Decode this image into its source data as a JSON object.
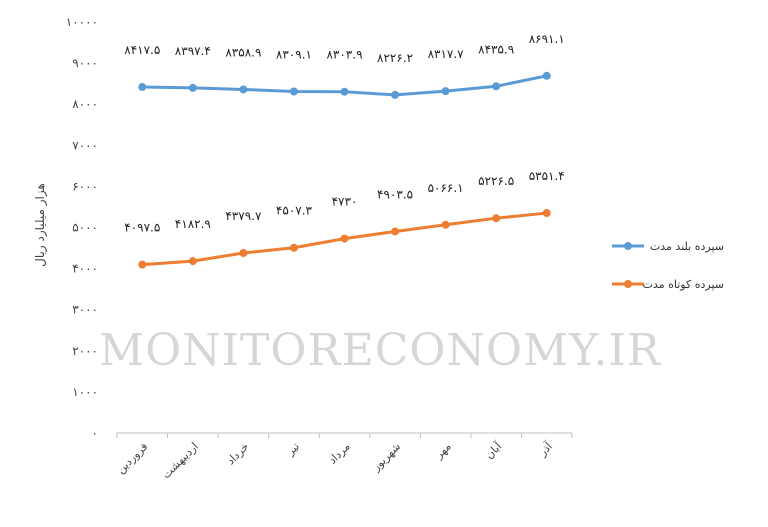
{
  "chart_data": {
    "type": "line",
    "categories": [
      "فروردین",
      "اردیبهشت",
      "خرداد",
      "تیر",
      "مرداد",
      "شهریور",
      "مهر",
      "آبان",
      "آذر"
    ],
    "ylabel": "هزار میلیارد ریال",
    "ylim": [
      0,
      10000
    ],
    "yticks": [
      "۰",
      "۱۰۰۰",
      "۲۰۰۰",
      "۳۰۰۰",
      "۴۰۰۰",
      "۵۰۰۰",
      "۶۰۰۰",
      "۷۰۰۰",
      "۸۰۰۰",
      "۹۰۰۰",
      "۱۰۰۰۰"
    ],
    "ytick_values": [
      0,
      1000,
      2000,
      3000,
      4000,
      5000,
      6000,
      7000,
      8000,
      9000,
      10000
    ],
    "grid": false,
    "legend_position": "right",
    "series": [
      {
        "name": "سپرده بلند مدت",
        "color": "#5b9bd5",
        "values": [
          8417.5,
          8397.4,
          8358.9,
          8309.1,
          8303.9,
          8226.2,
          8317.7,
          8435.9,
          8691.1
        ],
        "labels": [
          "۸۴۱۷.۵",
          "۸۳۹۷.۴",
          "۸۳۵۸.۹",
          "۸۳۰۹.۱",
          "۸۳۰۳.۹",
          "۸۲۲۶.۲",
          "۸۳۱۷.۷",
          "۸۴۳۵.۹",
          "۸۶۹۱.۱"
        ]
      },
      {
        "name": "سپرده کوتاه مدت",
        "color": "#ed7d31",
        "values": [
          4097.5,
          4182.9,
          4379.7,
          4507.3,
          4730,
          4903.5,
          5066.1,
          5226.5,
          5351.4
        ],
        "labels": [
          "۴۰۹۷.۵",
          "۴۱۸۲.۹",
          "۴۳۷۹.۷",
          "۴۵۰۷.۳",
          "۴۷۳۰",
          "۴۹۰۳.۵",
          "۵۰۶۶.۱",
          "۵۲۲۶.۵",
          "۵۳۵۱.۴"
        ]
      }
    ]
  },
  "watermark": "MONITORECONOMY.IR"
}
